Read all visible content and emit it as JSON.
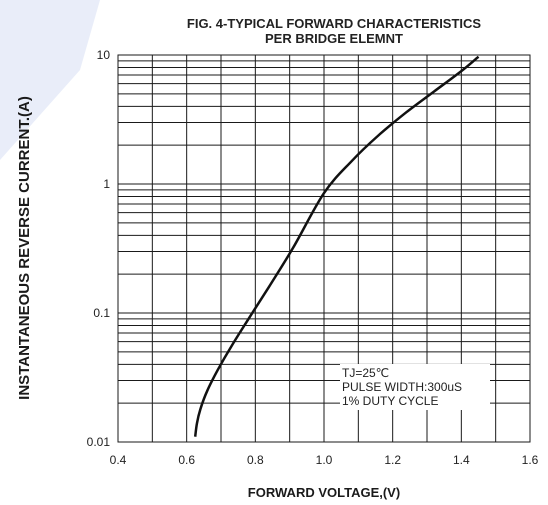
{
  "chart_data": {
    "type": "line",
    "title": [
      "FIG. 4-TYPICAL FORWARD CHARACTERISTICS",
      "PER BRIDGE ELEMNT"
    ],
    "xlabel": "FORWARD VOLTAGE,(V)",
    "ylabel": "INSTANTANEOUS REVERSE CURRENT.(A)",
    "xlim": [
      0.4,
      1.6
    ],
    "ylim": [
      0.01,
      10
    ],
    "yscale": "log",
    "grid": true,
    "x_ticks": [
      "0.4",
      "0.6",
      "0.8",
      "1.0",
      "1.2",
      "1.4",
      "1.6"
    ],
    "y_ticks": [
      "0.01",
      "0.1",
      "1",
      "10"
    ],
    "series": [
      {
        "x": [
          0.625,
          0.63,
          0.64,
          0.66,
          0.69,
          0.73,
          0.78,
          0.84,
          0.91,
          1.0,
          1.08,
          1.16,
          1.24,
          1.32,
          1.4,
          1.45
        ],
        "y": [
          0.011,
          0.014,
          0.018,
          0.025,
          0.036,
          0.055,
          0.09,
          0.16,
          0.32,
          0.85,
          1.5,
          2.4,
          3.6,
          5.2,
          7.5,
          9.7
        ]
      }
    ],
    "annotation": {
      "lines": [
        "TJ=25℃",
        "PULSE WIDTH:300uS",
        "1% DUTY CYCLE"
      ]
    },
    "colors": {
      "line": "#111111",
      "grid": "#1a1a1a",
      "watermark": "#dfe6f6"
    }
  }
}
